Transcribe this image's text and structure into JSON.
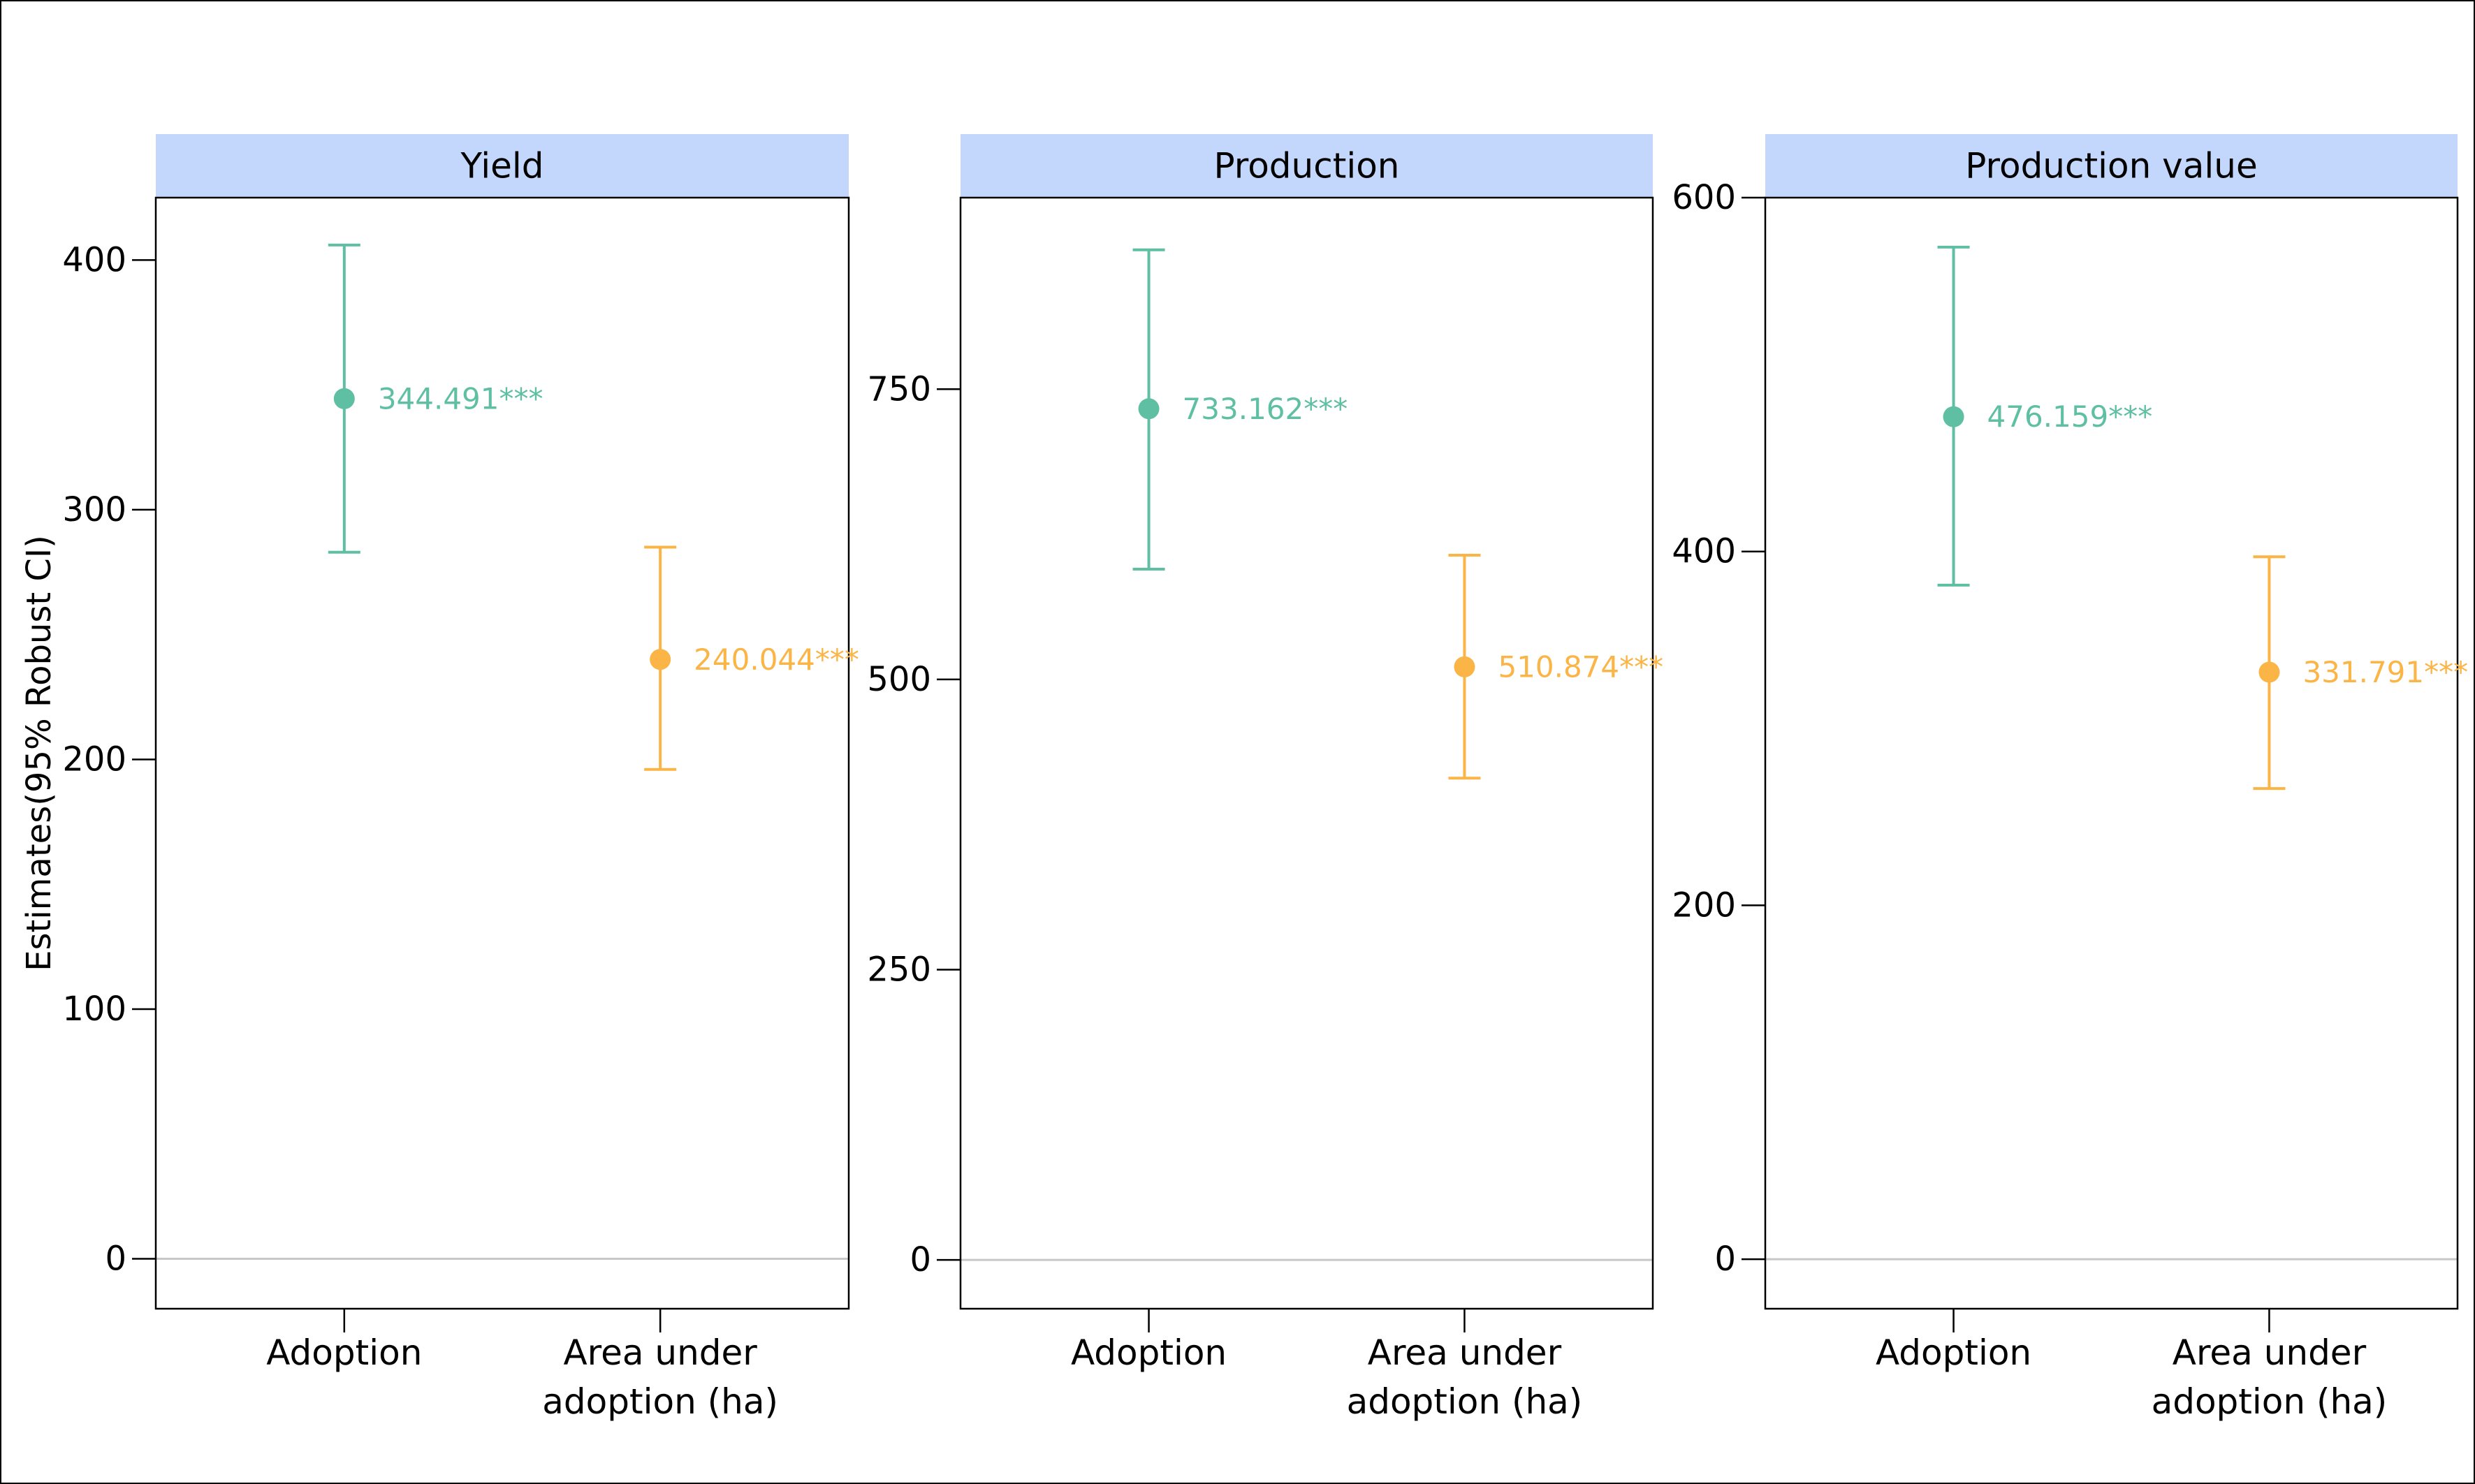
{
  "ylabel": "Estimates(95% Robust CI)",
  "colors": {
    "strip_fill": "#c3d7fd",
    "adoption": "#5fbfa3",
    "area": "#fbb446",
    "zero_line": "#c8c8c8",
    "frame": "#000000"
  },
  "chart_data": [
    {
      "type": "errorbar-point",
      "title": "Yield",
      "categories": [
        "Adoption",
        "Area under adoption (ha)"
      ],
      "category_lines": [
        [
          "Adoption"
        ],
        [
          "Area under",
          "adoption (ha)"
        ]
      ],
      "ylim": [
        -20,
        425
      ],
      "yticks": [
        0,
        100,
        200,
        300,
        400
      ],
      "points": [
        {
          "category": "Adoption",
          "estimate": 344.491,
          "ci_low": 283,
          "ci_high": 406,
          "label": "344.491***",
          "color_key": "adoption"
        },
        {
          "category": "Area under adoption (ha)",
          "estimate": 240.044,
          "ci_low": 196,
          "ci_high": 285,
          "label": "240.044***",
          "color_key": "area"
        }
      ]
    },
    {
      "type": "errorbar-point",
      "title": "Production",
      "categories": [
        "Adoption",
        "Area under adoption (ha)"
      ],
      "category_lines": [
        [
          "Adoption"
        ],
        [
          "Area under",
          "adoption (ha)"
        ]
      ],
      "ylim": [
        -42,
        915
      ],
      "yticks": [
        0,
        250,
        500,
        750
      ],
      "points": [
        {
          "category": "Adoption",
          "estimate": 733.162,
          "ci_low": 595,
          "ci_high": 870,
          "label": "733.162***",
          "color_key": "adoption"
        },
        {
          "category": "Area under adoption (ha)",
          "estimate": 510.874,
          "ci_low": 415,
          "ci_high": 607,
          "label": "510.874***",
          "color_key": "area"
        }
      ]
    },
    {
      "type": "errorbar-point",
      "title": "Production value",
      "categories": [
        "Adoption",
        "Area under adoption (ha)"
      ],
      "category_lines": [
        [
          "Adoption"
        ],
        [
          "Area under",
          "adoption (ha)"
        ]
      ],
      "ylim": [
        -28,
        600
      ],
      "yticks": [
        0,
        200,
        400,
        600
      ],
      "points": [
        {
          "category": "Adoption",
          "estimate": 476.159,
          "ci_low": 381,
          "ci_high": 572,
          "label": "476.159***",
          "color_key": "adoption"
        },
        {
          "category": "Area under adoption (ha)",
          "estimate": 331.791,
          "ci_low": 266,
          "ci_high": 397,
          "label": "331.791***",
          "color_key": "area"
        }
      ]
    }
  ]
}
